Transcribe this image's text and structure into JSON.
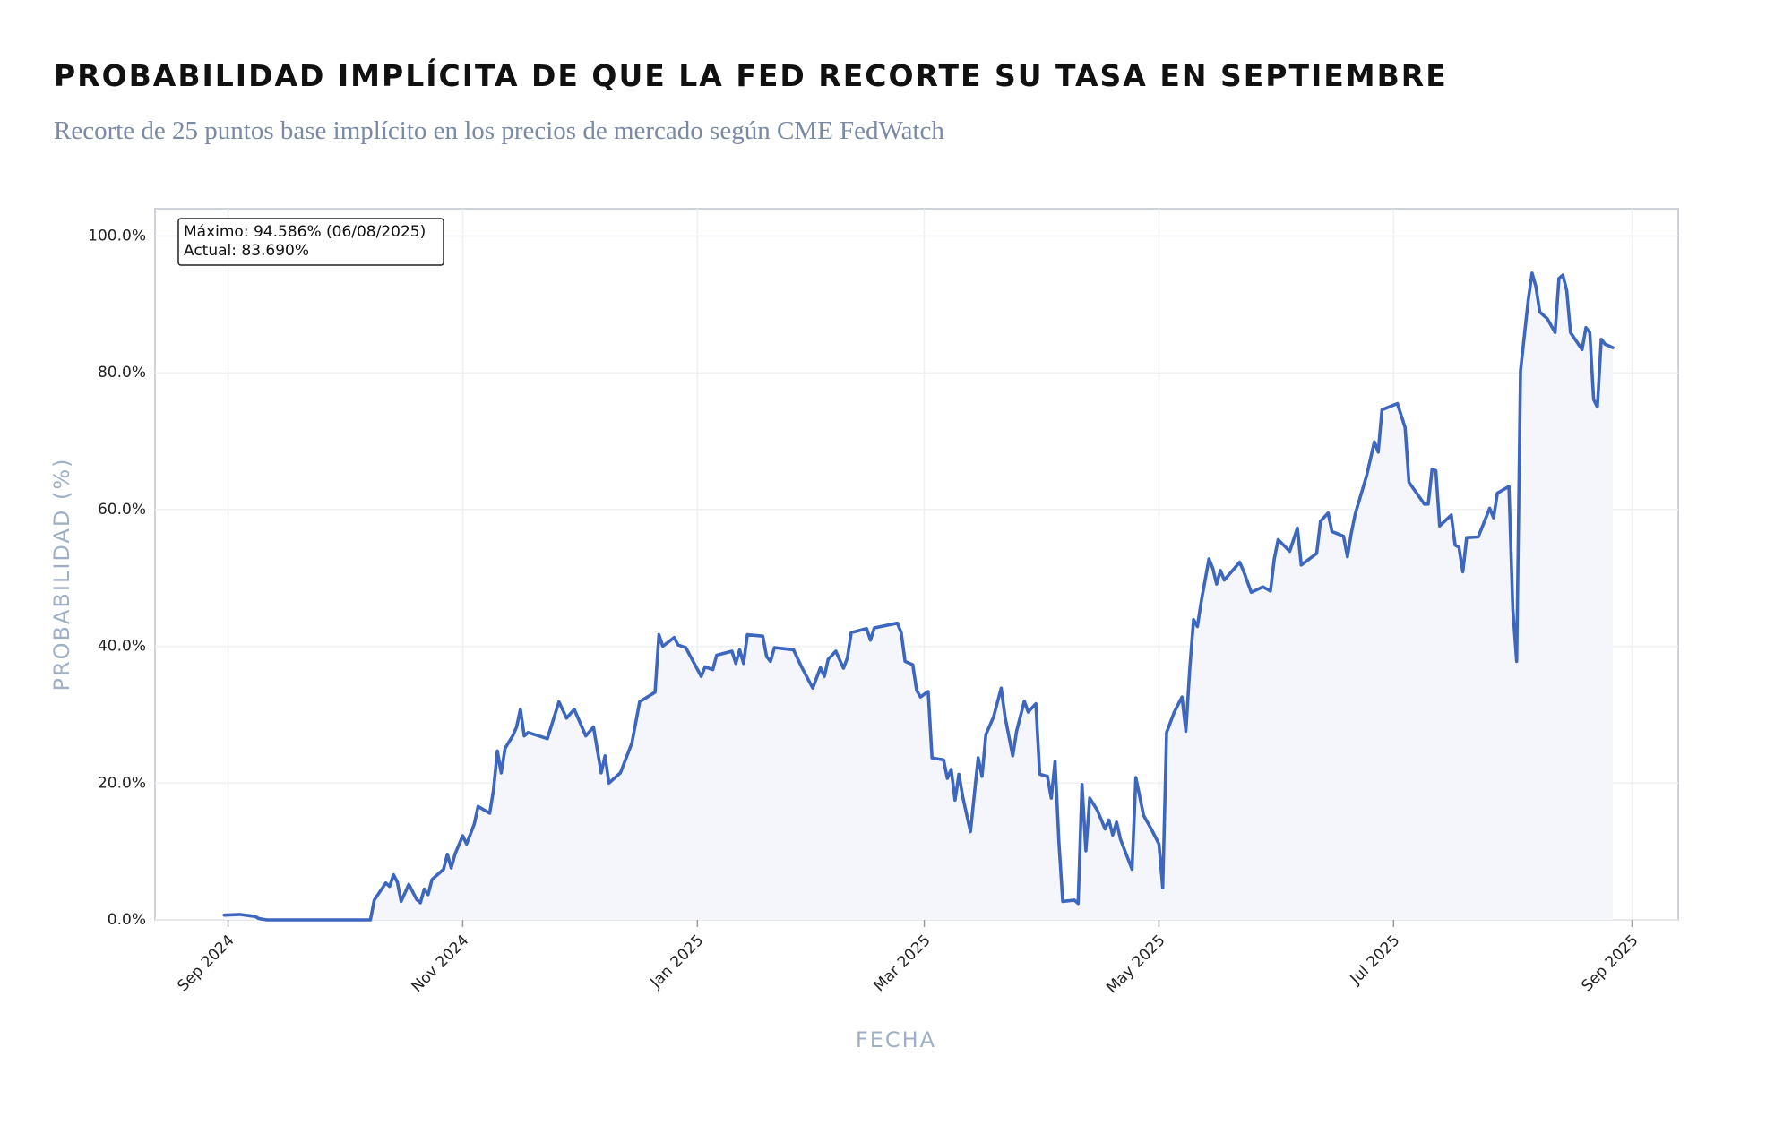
{
  "chart_data": {
    "type": "line",
    "title": "PROBABILIDAD IMPLÍCITA DE QUE LA FED RECORTE SU TASA EN SEPTIEMBRE",
    "subtitle": "Recorte de 25 puntos base implícito en los precios de mercado según CME FedWatch",
    "xlabel": "FECHA",
    "ylabel": "PROBABILIDAD (%)",
    "annotations": [
      "Máximo: 94.586% (06/08/2025)",
      "Actual: 83.690%"
    ],
    "color": "#3d67bf",
    "fill_color": "#f4f6fc",
    "grid": true,
    "xlim": [
      "2024-08-13",
      "2025-09-13"
    ],
    "xticks": [
      {
        "value": "2024-09-01",
        "label": "Sep 2024"
      },
      {
        "value": "2024-11-01",
        "label": "Nov 2024"
      },
      {
        "value": "2025-01-01",
        "label": "Jan 2025"
      },
      {
        "value": "2025-03-01",
        "label": "Mar 2025"
      },
      {
        "value": "2025-05-01",
        "label": "May 2025"
      },
      {
        "value": "2025-07-01",
        "label": "Jul 2025"
      },
      {
        "value": "2025-09-01",
        "label": "Sep 2025"
      }
    ],
    "ylim": [
      0,
      104
    ],
    "yticks": [
      {
        "value": 0,
        "label": "0.0%"
      },
      {
        "value": 20,
        "label": "20.0%"
      },
      {
        "value": 40,
        "label": "40.0%"
      },
      {
        "value": 60,
        "label": "60.0%"
      },
      {
        "value": 80,
        "label": "80.0%"
      },
      {
        "value": 100,
        "label": "100.0%"
      }
    ],
    "x": [
      "2024-08-31",
      "2024-09-04",
      "2024-09-08",
      "2024-09-09",
      "2024-09-11",
      "2024-10-08",
      "2024-10-09",
      "2024-10-12",
      "2024-10-13",
      "2024-10-14",
      "2024-10-15",
      "2024-10-16",
      "2024-10-18",
      "2024-10-20",
      "2024-10-21",
      "2024-10-22",
      "2024-10-23",
      "2024-10-24",
      "2024-10-27",
      "2024-10-28",
      "2024-10-29",
      "2024-10-30",
      "2024-11-01",
      "2024-11-02",
      "2024-11-04",
      "2024-11-05",
      "2024-11-08",
      "2024-11-09",
      "2024-11-10",
      "2024-11-11",
      "2024-11-12",
      "2024-11-14",
      "2024-11-15",
      "2024-11-16",
      "2024-11-17",
      "2024-11-18",
      "2024-11-23",
      "2024-11-26",
      "2024-11-28",
      "2024-11-30",
      "2024-12-03",
      "2024-12-05",
      "2024-12-07",
      "2024-12-08",
      "2024-12-09",
      "2024-12-12",
      "2024-12-15",
      "2024-12-17",
      "2024-12-21",
      "2024-12-22",
      "2024-12-23",
      "2024-12-26",
      "2024-12-27",
      "2024-12-29",
      "2025-01-02",
      "2025-01-03",
      "2025-01-05",
      "2025-01-06",
      "2025-01-10",
      "2025-01-11",
      "2025-01-12",
      "2025-01-13",
      "2025-01-14",
      "2025-01-18",
      "2025-01-19",
      "2025-01-20",
      "2025-01-21",
      "2025-01-26",
      "2025-01-28",
      "2025-01-31",
      "2025-02-02",
      "2025-02-03",
      "2025-02-04",
      "2025-02-06",
      "2025-02-08",
      "2025-02-09",
      "2025-02-10",
      "2025-02-14",
      "2025-02-15",
      "2025-02-16",
      "2025-02-22",
      "2025-02-23",
      "2025-02-24",
      "2025-02-26",
      "2025-02-27",
      "2025-02-28",
      "2025-03-02",
      "2025-03-03",
      "2025-03-06",
      "2025-03-07",
      "2025-03-08",
      "2025-03-09",
      "2025-03-10",
      "2025-03-11",
      "2025-03-13",
      "2025-03-15",
      "2025-03-16",
      "2025-03-17",
      "2025-03-19",
      "2025-03-21",
      "2025-03-22",
      "2025-03-24",
      "2025-03-25",
      "2025-03-27",
      "2025-03-28",
      "2025-03-30",
      "2025-03-31",
      "2025-04-02",
      "2025-04-03",
      "2025-04-04",
      "2025-04-05",
      "2025-04-06",
      "2025-04-09",
      "2025-04-10",
      "2025-04-11",
      "2025-04-12",
      "2025-04-13",
      "2025-04-15",
      "2025-04-17",
      "2025-04-18",
      "2025-04-19",
      "2025-04-20",
      "2025-04-21",
      "2025-04-24",
      "2025-04-25",
      "2025-04-27",
      "2025-04-29",
      "2025-05-01",
      "2025-05-02",
      "2025-05-03",
      "2025-05-05",
      "2025-05-07",
      "2025-05-08",
      "2025-05-09",
      "2025-05-10",
      "2025-05-11",
      "2025-05-12",
      "2025-05-14",
      "2025-05-15",
      "2025-05-16",
      "2025-05-17",
      "2025-05-18",
      "2025-05-22",
      "2025-05-23",
      "2025-05-25",
      "2025-05-28",
      "2025-05-30",
      "2025-05-31",
      "2025-06-01",
      "2025-06-04",
      "2025-06-06",
      "2025-06-07",
      "2025-06-11",
      "2025-06-12",
      "2025-06-14",
      "2025-06-15",
      "2025-06-18",
      "2025-06-19",
      "2025-06-20",
      "2025-06-21",
      "2025-06-24",
      "2025-06-26",
      "2025-06-27",
      "2025-06-28",
      "2025-07-02",
      "2025-07-04",
      "2025-07-05",
      "2025-07-09",
      "2025-07-10",
      "2025-07-11",
      "2025-07-12",
      "2025-07-13",
      "2025-07-16",
      "2025-07-17",
      "2025-07-18",
      "2025-07-19",
      "2025-07-20",
      "2025-07-23",
      "2025-07-26",
      "2025-07-27",
      "2025-07-28",
      "2025-07-31",
      "2025-08-01",
      "2025-08-02",
      "2025-08-03",
      "2025-08-05",
      "2025-08-06",
      "2025-08-07",
      "2025-08-08",
      "2025-08-10",
      "2025-08-12",
      "2025-08-13",
      "2025-08-14",
      "2025-08-15",
      "2025-08-16",
      "2025-08-19",
      "2025-08-20",
      "2025-08-21",
      "2025-08-22",
      "2025-08-23",
      "2025-08-24",
      "2025-08-25",
      "2025-08-27"
    ],
    "values": [
      0.7,
      0.8,
      0.5,
      0.2,
      0,
      0,
      2.9,
      5.4,
      4.9,
      6.6,
      5.5,
      2.7,
      5.2,
      3.0,
      2.5,
      4.5,
      3.7,
      5.9,
      7.4,
      9.6,
      7.6,
      9.6,
      12.3,
      11.1,
      14.0,
      16.6,
      15.6,
      19.0,
      24.7,
      21.5,
      25.1,
      26.9,
      28.2,
      30.8,
      26.9,
      27.4,
      26.5,
      31.9,
      29.5,
      30.8,
      26.9,
      28.2,
      21.5,
      24.0,
      20.0,
      21.5,
      25.9,
      31.9,
      33.3,
      41.7,
      40.0,
      41.3,
      40.2,
      39.8,
      35.6,
      37.0,
      36.6,
      38.7,
      39.3,
      37.5,
      39.5,
      37.5,
      41.7,
      41.5,
      38.5,
      37.8,
      39.8,
      39.5,
      37.1,
      33.9,
      36.9,
      35.6,
      38.1,
      39.3,
      36.8,
      38.3,
      42.0,
      42.6,
      40.9,
      42.7,
      43.4,
      42.0,
      37.8,
      37.3,
      33.6,
      32.6,
      33.4,
      23.7,
      23.4,
      20.7,
      22.0,
      17.5,
      21.3,
      18.0,
      12.9,
      23.7,
      21.0,
      27.1,
      29.7,
      33.9,
      29.7,
      24.0,
      27.6,
      32.0,
      30.4,
      31.6,
      21.3,
      21.0,
      17.8,
      23.2,
      11.4,
      2.7,
      2.9,
      2.4,
      19.8,
      10.1,
      17.8,
      16.0,
      13.3,
      14.6,
      12.4,
      14.3,
      11.8,
      7.4,
      20.8,
      15.3,
      13.3,
      11.1,
      4.7,
      27.4,
      30.4,
      32.6,
      27.6,
      36.6,
      43.9,
      42.9,
      46.6,
      52.8,
      51.4,
      49.1,
      51.1,
      49.7,
      52.3,
      51.0,
      47.9,
      48.7,
      48.1,
      52.8,
      55.6,
      53.9,
      57.3,
      51.9,
      53.6,
      58.3,
      59.5,
      56.8,
      56.1,
      53.1,
      56.5,
      59.3,
      65.0,
      69.9,
      68.4,
      74.6,
      75.5,
      72.0,
      64.0,
      60.8,
      60.8,
      65.9,
      65.7,
      57.6,
      59.2,
      54.8,
      54.5,
      50.9,
      55.9,
      56.0,
      60.2,
      58.8,
      62.4,
      63.4,
      45.5,
      37.8,
      80.3,
      90.6,
      94.586,
      92.6,
      88.9,
      87.9,
      85.9,
      93.8,
      94.3,
      92.1,
      85.9,
      83.4,
      86.6,
      85.9,
      76.1,
      75.0,
      84.9,
      84.2,
      83.69
    ]
  }
}
